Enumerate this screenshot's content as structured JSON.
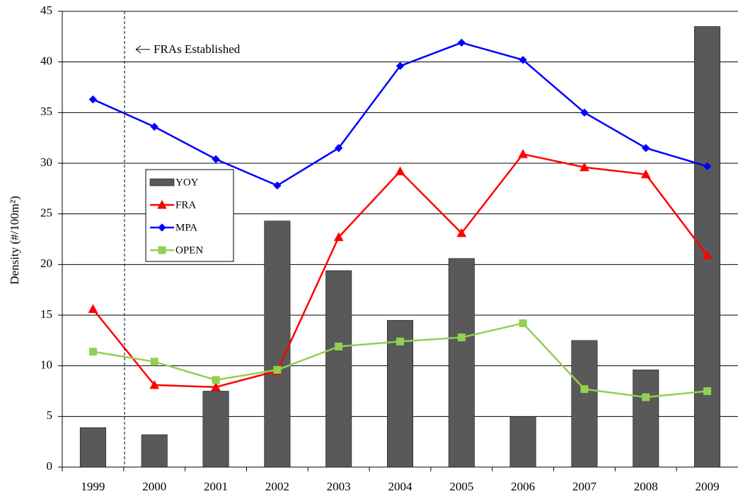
{
  "chart_data": {
    "type": "combo",
    "y_label": "Density (#/100m²)",
    "annotation": "FRAs Established",
    "categories": [
      "1999",
      "2000",
      "2001",
      "2002",
      "2003",
      "2004",
      "2005",
      "2006",
      "2007",
      "2008",
      "2009"
    ],
    "series": [
      {
        "name": "YOY",
        "type": "bar",
        "color": "#595959",
        "values": [
          3.9,
          3.2,
          7.5,
          24.3,
          19.4,
          14.5,
          20.6,
          5.0,
          12.5,
          9.6,
          43.5
        ]
      },
      {
        "name": "FRA",
        "type": "line",
        "marker": "triangle",
        "color": "#ff0000",
        "values": [
          15.6,
          8.1,
          7.9,
          9.5,
          22.7,
          29.2,
          23.1,
          30.9,
          29.6,
          28.9,
          20.9
        ]
      },
      {
        "name": "MPA",
        "type": "line",
        "marker": "diamond",
        "color": "#0000ff",
        "values": [
          36.3,
          33.6,
          30.4,
          27.8,
          31.5,
          39.6,
          41.9,
          40.2,
          35.0,
          31.5,
          29.7
        ]
      },
      {
        "name": "OPEN",
        "type": "line",
        "marker": "square",
        "color": "#92d050",
        "values": [
          11.4,
          10.4,
          8.6,
          9.6,
          11.9,
          12.4,
          12.8,
          14.2,
          7.7,
          6.9,
          7.5
        ]
      }
    ],
    "ylim": [
      0,
      45
    ],
    "yticks": [
      0,
      5,
      10,
      15,
      20,
      25,
      30,
      35,
      40,
      45
    ],
    "grid": true
  }
}
